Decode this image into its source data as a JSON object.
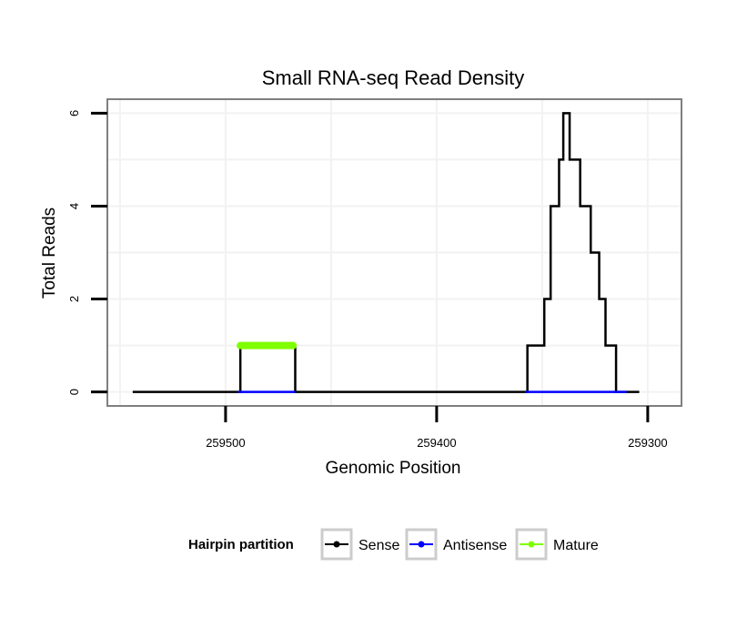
{
  "chart_data": {
    "type": "line",
    "title": "Small RNA-seq Read Density",
    "xlabel": "Genomic Position",
    "ylabel": "Total Reads",
    "xlim": [
      259556,
      259284
    ],
    "ylim": [
      -0.3,
      6.3
    ],
    "x_reversed": true,
    "grid": true,
    "xticks": [
      259500,
      259400,
      259300
    ],
    "xtick_labels": [
      "259500",
      "259400",
      "259300"
    ],
    "yticks": [
      0,
      2,
      4,
      6
    ],
    "ytick_labels": [
      "0",
      "2",
      "4",
      "6"
    ],
    "series": [
      {
        "name": "Sense",
        "color": "#000000",
        "step": true,
        "x": [
          259544,
          259494,
          259493,
          259468,
          259467,
          259358,
          259357,
          259350,
          259349,
          259347,
          259346,
          259343,
          259342,
          259341,
          259340,
          259338,
          259337,
          259333,
          259332,
          259328,
          259327,
          259324,
          259323,
          259321,
          259320,
          259316,
          259315,
          259313,
          259312,
          259311,
          259310,
          259304
        ],
        "y": [
          0,
          0,
          1,
          1,
          0,
          0,
          1,
          1,
          2,
          2,
          4,
          4,
          5,
          5,
          6,
          6,
          5,
          5,
          4,
          4,
          3,
          3,
          2,
          2,
          1,
          1,
          0,
          0,
          0,
          0,
          0,
          0
        ]
      },
      {
        "name": "Antisense",
        "color": "#0000ff",
        "step": false,
        "x": [
          259494,
          259467,
          259358,
          259310
        ],
        "y": [
          0,
          0,
          0,
          0
        ],
        "segments": [
          [
            0,
            1
          ],
          [
            2,
            3
          ]
        ]
      },
      {
        "name": "Mature",
        "color": "#7fff00",
        "step": false,
        "x": [
          259493,
          259468
        ],
        "y": [
          1,
          1
        ]
      }
    ],
    "legend": {
      "title": "Hairpin partition",
      "position": "bottom",
      "entries": [
        "Sense",
        "Antisense",
        "Mature"
      ]
    }
  }
}
